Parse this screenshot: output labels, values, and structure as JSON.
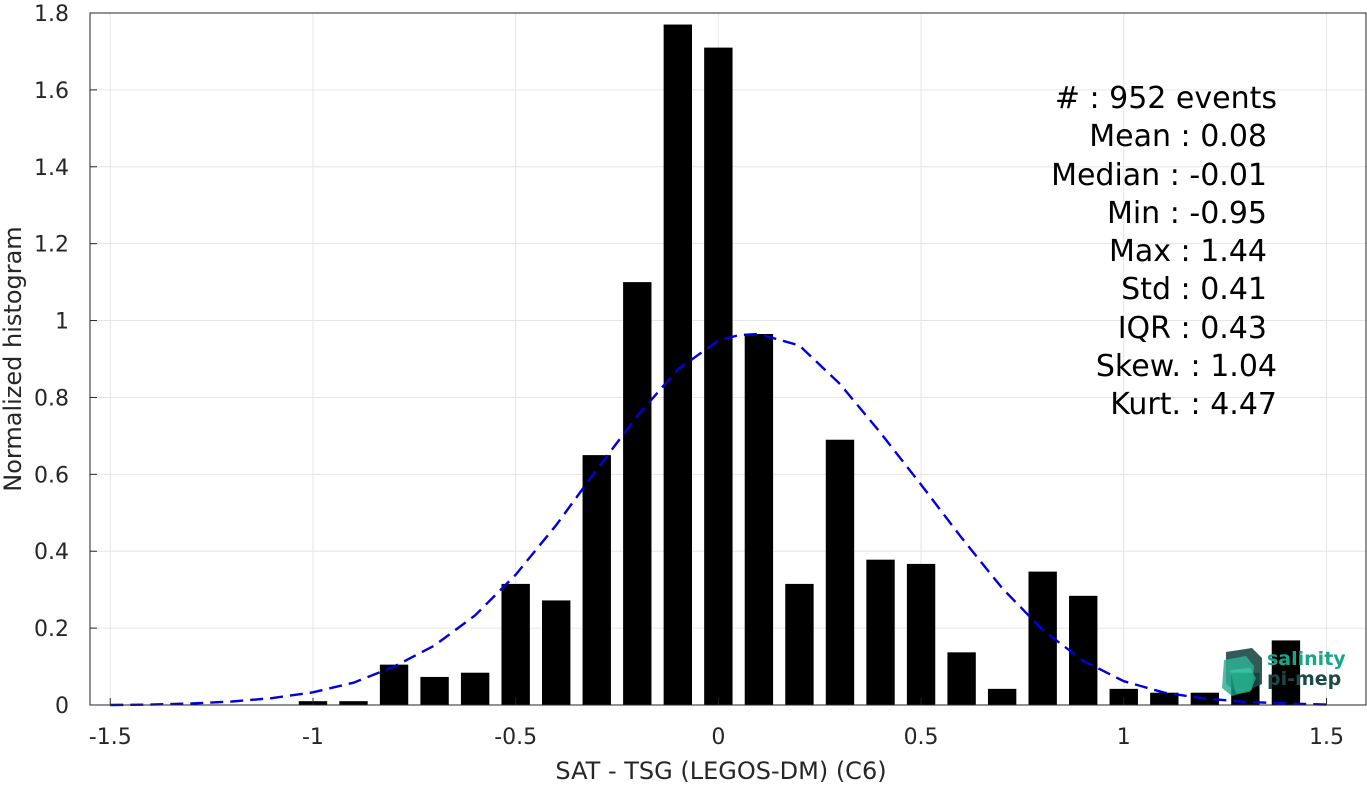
{
  "chart_data": {
    "type": "bar",
    "xlabel": "SAT - TSG (LEGOS-DM) (C6)",
    "ylabel": "Normalized histogram",
    "xlim": [
      -1.55,
      1.6
    ],
    "ylim": [
      0,
      1.8
    ],
    "x_ticks": [
      -1.5,
      -1,
      -0.5,
      0,
      0.5,
      1,
      1.5
    ],
    "x_tick_labels": [
      "-1.5",
      "-1",
      "-0.5",
      "0",
      "0.5",
      "1",
      "1.5"
    ],
    "y_ticks": [
      0,
      0.2,
      0.4,
      0.6,
      0.8,
      1,
      1.2,
      1.4,
      1.6,
      1.8
    ],
    "y_tick_labels": [
      "0",
      "0.2",
      "0.4",
      "0.6",
      "0.8",
      "1",
      "1.2",
      "1.4",
      "1.6",
      "1.8"
    ],
    "grid": true,
    "bar_width": 0.07,
    "bar_color": "#000000",
    "series": [
      {
        "x": [
          -1.0,
          -0.9,
          -0.8,
          -0.7,
          -0.6,
          -0.5,
          -0.4,
          -0.3,
          -0.2,
          -0.1,
          0.0,
          0.1,
          0.2,
          0.3,
          0.4,
          0.5,
          0.6,
          0.7,
          0.8,
          0.9,
          1.0,
          1.1,
          1.2,
          1.3,
          1.4
        ],
        "values": [
          0.01,
          0.01,
          0.105,
          0.073,
          0.084,
          0.315,
          0.272,
          0.65,
          1.1,
          1.77,
          1.71,
          0.965,
          0.315,
          0.69,
          0.378,
          0.367,
          0.137,
          0.042,
          0.347,
          0.284,
          0.042,
          0.032,
          0.032,
          0.084,
          0.168
        ]
      }
    ],
    "fit_curve": {
      "style": "dashed",
      "color": "#0000dd",
      "x": [
        -1.5,
        -1.4,
        -1.3,
        -1.2,
        -1.1,
        -1.0,
        -0.9,
        -0.8,
        -0.7,
        -0.6,
        -0.5,
        -0.4,
        -0.3,
        -0.2,
        -0.1,
        0.0,
        0.05,
        0.1,
        0.2,
        0.3,
        0.4,
        0.5,
        0.6,
        0.7,
        0.8,
        0.9,
        1.0,
        1.1,
        1.2,
        1.3,
        1.4,
        1.5
      ],
      "y": [
        0.0,
        0.001,
        0.004,
        0.009,
        0.018,
        0.033,
        0.058,
        0.1,
        0.155,
        0.233,
        0.339,
        0.468,
        0.612,
        0.752,
        0.873,
        0.948,
        0.962,
        0.965,
        0.935,
        0.835,
        0.708,
        0.573,
        0.435,
        0.304,
        0.195,
        0.115,
        0.062,
        0.032,
        0.017,
        0.008,
        0.004,
        0.001
      ]
    },
    "annotations": [
      "#  : 952 events",
      "Mean : 0.08",
      "Median : -0.01",
      "Min : -0.95",
      "Max : 1.44",
      "Std : 0.41",
      "IQR : 0.43",
      "Skew. : 1.04",
      "Kurt. : 4.47"
    ]
  },
  "logo": {
    "line1": "salinity",
    "line2": "pi-mep",
    "colors": {
      "teal": "#1aa58a",
      "dark": "#1c4a47"
    }
  }
}
